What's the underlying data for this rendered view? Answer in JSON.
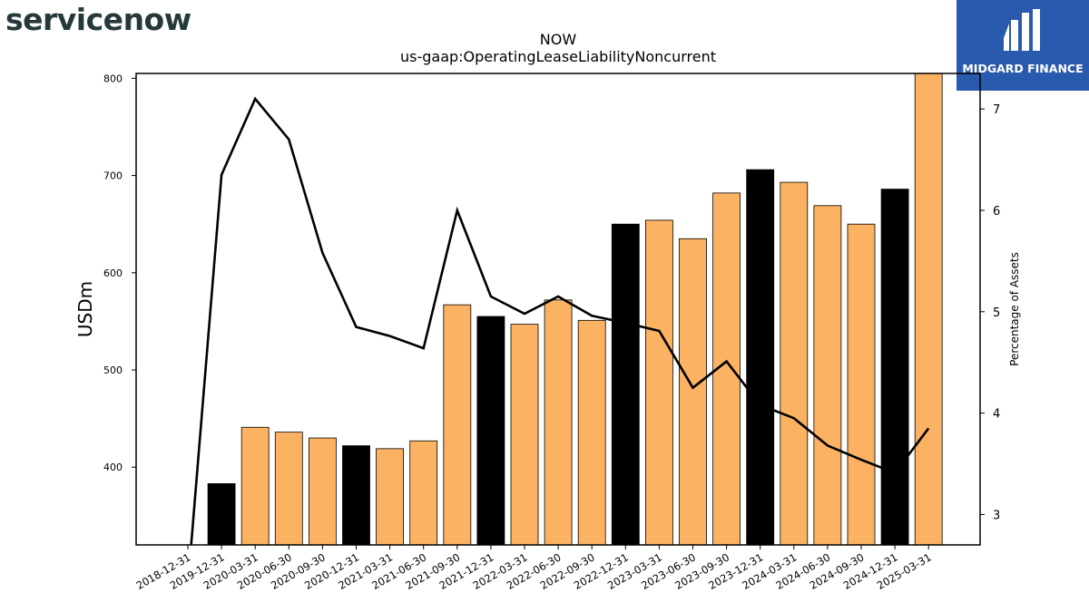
{
  "branding": {
    "left_logo_text": "servicenow",
    "right_logo_text": "MIDGARD FINANCE",
    "right_logo_bg": "#2a5aae"
  },
  "chart_data": {
    "type": "bar",
    "title": "NOW",
    "subtitle": "us-gaap:OperatingLeaseLiabilityNoncurrent",
    "ylabel": "USDm",
    "y2label": "Percentage of Assets",
    "ylim": [
      320,
      805
    ],
    "y2lim": [
      2.7,
      7.35
    ],
    "yticks": [
      400,
      500,
      600,
      700,
      800
    ],
    "y2ticks": [
      3,
      4,
      5,
      6,
      7
    ],
    "categories": [
      "2018-12-31",
      "2019-12-31",
      "2020-03-31",
      "2020-06-30",
      "2020-09-30",
      "2020-12-31",
      "2021-03-31",
      "2021-06-30",
      "2021-09-30",
      "2021-12-31",
      "2022-03-31",
      "2022-06-30",
      "2022-09-30",
      "2022-12-31",
      "2023-03-31",
      "2023-06-30",
      "2023-09-30",
      "2023-12-31",
      "2024-03-31",
      "2024-06-30",
      "2024-09-30",
      "2024-12-31",
      "2025-03-31"
    ],
    "series": [
      {
        "type": "bar",
        "axis": "left",
        "values": [
          null,
          383,
          441,
          436,
          430,
          422,
          419,
          427,
          567,
          555,
          547,
          572,
          551,
          650,
          654,
          635,
          682,
          706,
          693,
          669,
          650,
          686,
          805
        ],
        "colors_by_period": {
          "annual": "#000000",
          "quarterly": "#fbb262"
        },
        "annual_flags": [
          true,
          true,
          false,
          false,
          false,
          true,
          false,
          false,
          false,
          true,
          false,
          false,
          false,
          true,
          false,
          false,
          false,
          true,
          false,
          false,
          false,
          true,
          false
        ]
      },
      {
        "type": "line",
        "axis": "right",
        "color": "#000000",
        "values": [
          2.3,
          6.35,
          7.1,
          6.7,
          5.58,
          4.85,
          4.76,
          4.64,
          6.0,
          5.15,
          4.98,
          5.15,
          4.96,
          4.89,
          4.81,
          4.25,
          4.51,
          4.08,
          3.95,
          3.68,
          3.54,
          3.41,
          3.85
        ]
      }
    ],
    "grid": false,
    "legend": "none"
  }
}
